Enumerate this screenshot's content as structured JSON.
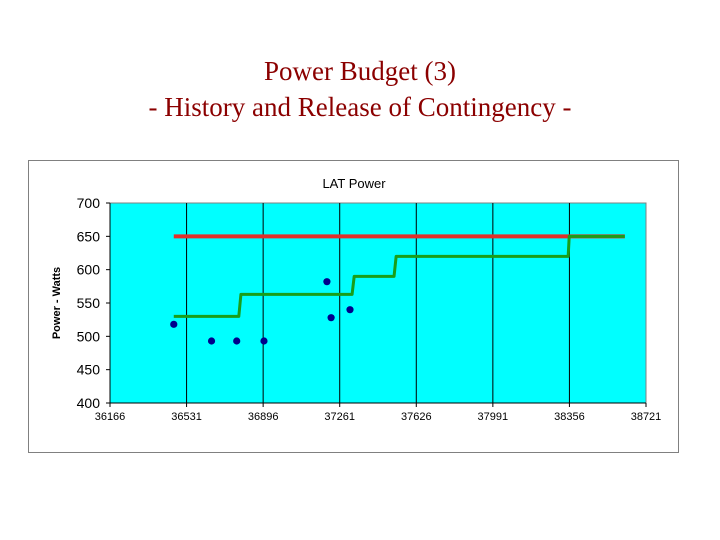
{
  "slide": {
    "title": "Power Budget (3)",
    "subtitle": "- History and Release of Contingency -"
  },
  "colors": {
    "title": "#8b0000",
    "plot_area": "#00ffff",
    "gridline": "#000000",
    "limit_line": "#e0302a",
    "budget_line": "#1a9e1a",
    "points": "#00008b"
  },
  "chart_data": {
    "type": "line",
    "title": "LAT Power",
    "xlabel": "",
    "ylabel": "Power - Watts",
    "xlim": [
      36166,
      38721
    ],
    "ylim": [
      400,
      700
    ],
    "xticks": [
      36166,
      36531,
      36896,
      37261,
      37626,
      37991,
      38356,
      38721
    ],
    "yticks": [
      400,
      450,
      500,
      550,
      600,
      650,
      700
    ],
    "grid": "vertical-at-x-ticks",
    "legend": "none",
    "series": [
      {
        "type": "line",
        "color_key": "limit_line",
        "x": [
          36470,
          38620
        ],
        "y": [
          650,
          650
        ]
      },
      {
        "type": "line",
        "color_key": "budget_line",
        "x": [
          36470,
          36780,
          36790,
          37320,
          37330,
          37520,
          37530,
          38350,
          38355,
          38620
        ],
        "y": [
          530,
          530,
          563,
          563,
          590,
          590,
          620,
          620,
          650,
          650
        ]
      },
      {
        "type": "scatter",
        "color_key": "points",
        "x": [
          36470,
          36650,
          36770,
          36900,
          37200,
          37220,
          37310
        ],
        "y": [
          518,
          493,
          493,
          493,
          582,
          528,
          540
        ]
      }
    ]
  }
}
